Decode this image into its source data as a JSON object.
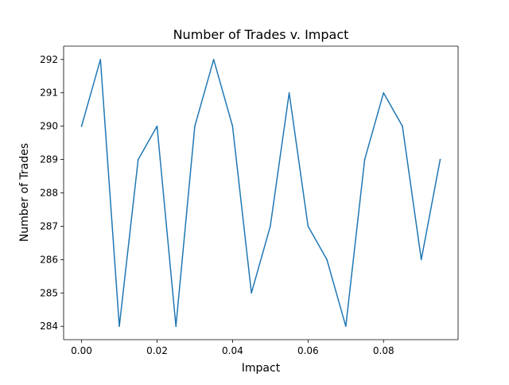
{
  "chart_data": {
    "type": "line",
    "title": "Number of Trades v. Impact",
    "xlabel": "Impact",
    "ylabel": "Number of Trades",
    "xlim": [
      -0.00475,
      0.09975
    ],
    "ylim": [
      283.6,
      292.4
    ],
    "xticks": [
      0.0,
      0.02,
      0.04,
      0.06,
      0.08
    ],
    "xtick_labels": [
      "0.00",
      "0.02",
      "0.04",
      "0.06",
      "0.08"
    ],
    "yticks": [
      284,
      285,
      286,
      287,
      288,
      289,
      290,
      291,
      292
    ],
    "ytick_labels": [
      "284",
      "285",
      "286",
      "287",
      "288",
      "289",
      "290",
      "291",
      "292"
    ],
    "grid": false,
    "legend": false,
    "line_color": "#1f77b4",
    "series": [
      {
        "x": [
          0.0,
          0.005,
          0.01,
          0.015,
          0.02,
          0.025,
          0.03,
          0.035,
          0.04,
          0.045,
          0.05,
          0.055,
          0.06,
          0.065,
          0.07,
          0.075,
          0.08,
          0.085,
          0.09,
          0.095
        ],
        "values": [
          290,
          292,
          284,
          289,
          290,
          284,
          290,
          292,
          290,
          285,
          287,
          291,
          287,
          286,
          284,
          289,
          291,
          290,
          286,
          289
        ]
      }
    ]
  }
}
